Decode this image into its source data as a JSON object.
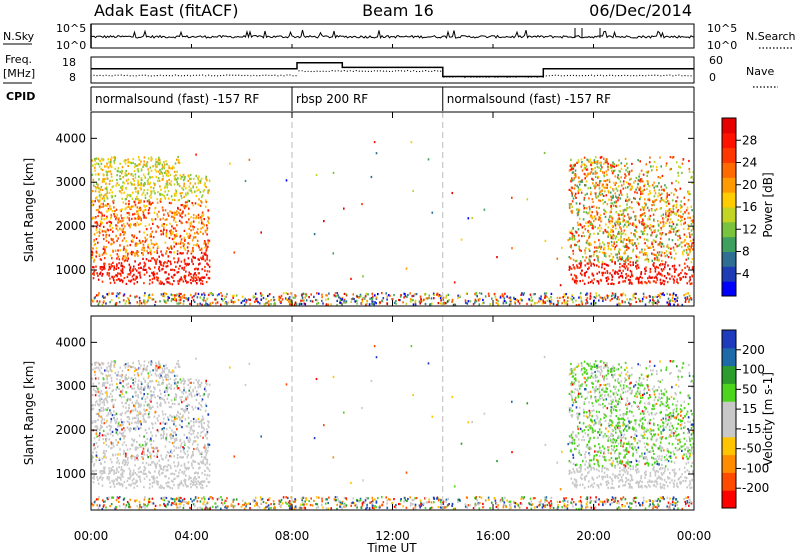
{
  "header": {
    "title_left": "Adak East (fitACF)",
    "title_center": "Beam 16",
    "title_right": "06/Dec/2014"
  },
  "top_panels": {
    "nsky_label": "N.Sky",
    "nsky_ticks": [
      "10^5",
      "10^0"
    ],
    "nsearch_label": "N.Search",
    "freq_label_1": "Freq.",
    "freq_label_2": "[MHz]",
    "freq_ticks": [
      "18",
      "8"
    ],
    "nave_ticks": [
      "60",
      "0"
    ],
    "nave_label": "Nave",
    "cpid_label": "CPID",
    "cpid_segments": [
      {
        "label": "normalsound (fast) -157 RF",
        "start_hour": 0,
        "end_hour": 8
      },
      {
        "label": "rbsp 200 RF",
        "start_hour": 8,
        "end_hour": 14
      },
      {
        "label": "normalsound (fast) -157 RF",
        "start_hour": 14,
        "end_hour": 24
      }
    ],
    "freq_steps": [
      {
        "x": 0,
        "y": 13.5
      },
      {
        "x": 8.2,
        "y": 13.5
      },
      {
        "x": 8.2,
        "y": 15.8
      },
      {
        "x": 10.0,
        "y": 15.8
      },
      {
        "x": 10.0,
        "y": 14.0
      },
      {
        "x": 14.0,
        "y": 14.0
      },
      {
        "x": 14.0,
        "y": 10.5
      },
      {
        "x": 18.0,
        "y": 10.5
      },
      {
        "x": 18.0,
        "y": 13.5
      },
      {
        "x": 24,
        "y": 13.5
      }
    ]
  },
  "chart_data": [
    {
      "type": "heatmap",
      "name": "power",
      "ylabel": "Slant Range [km]",
      "xlim": [
        0,
        24
      ],
      "ylim": [
        180,
        4600
      ],
      "yticks": [
        1000,
        2000,
        3000,
        4000
      ],
      "colorbar": {
        "label": "Power [dB]",
        "ticks": [
          "28",
          "24",
          "20",
          "16",
          "12",
          "8",
          "4"
        ],
        "colors": [
          "#0000ff",
          "#1e3cb4",
          "#2f6f94",
          "#3f9f5f",
          "#79c33e",
          "#c2d424",
          "#ffcc00",
          "#ff9a00",
          "#ff6a00",
          "#ff3800",
          "#ff1300",
          "#e60000"
        ]
      }
    },
    {
      "type": "heatmap",
      "name": "velocity",
      "ylabel": "Slant Range [km]",
      "xlabel": "Time UT",
      "xlim": [
        0,
        24
      ],
      "ylim": [
        180,
        4600
      ],
      "yticks": [
        1000,
        2000,
        3000,
        4000
      ],
      "xticks": [
        "00:00",
        "04:00",
        "08:00",
        "12:00",
        "16:00",
        "20:00",
        "00:00"
      ],
      "colorbar": {
        "label": "Velocity [m s-1]",
        "ticks": [
          "200",
          "100",
          "50",
          "15",
          "-15",
          "-50",
          "-100",
          "-200"
        ],
        "colors": [
          "#ff0000",
          "#ff4a00",
          "#ff8c00",
          "#ffc400",
          "#c8c8c8",
          "#c8c8c8",
          "#4cd51c",
          "#2c9c2c",
          "#1e6aa8",
          "#1f3bbd"
        ]
      }
    }
  ]
}
